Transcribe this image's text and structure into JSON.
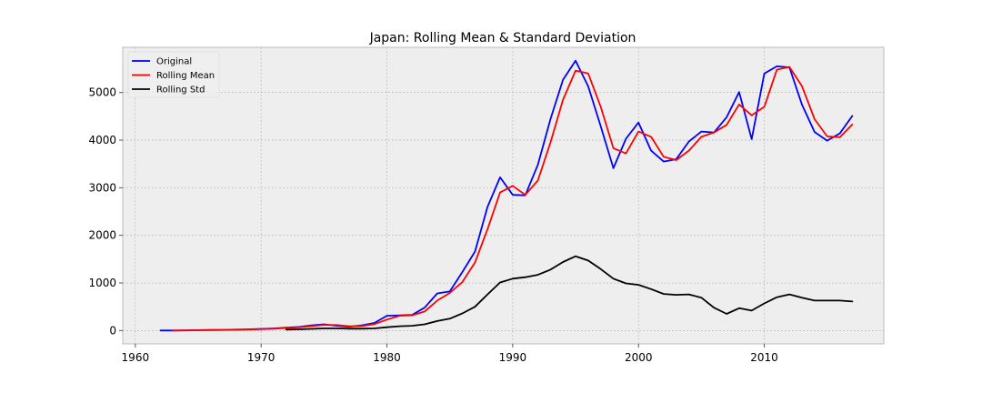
{
  "chart_data": {
    "type": "line",
    "title": "Japan: Rolling Mean & Standard Deviation",
    "xlabel": "",
    "ylabel": "",
    "xlim": [
      1959,
      2019.5
    ],
    "ylim": [
      -280,
      5950
    ],
    "xticks": [
      1960,
      1970,
      1980,
      1990,
      2000,
      2010
    ],
    "yticks": [
      0,
      1000,
      2000,
      3000,
      4000,
      5000
    ],
    "grid": true,
    "legend_position": "top-left",
    "background_color": "#eeeeee",
    "series": [
      {
        "name": "Original",
        "color": "#0000ff",
        "x": [
          1962,
          1963,
          1964,
          1965,
          1966,
          1967,
          1968,
          1969,
          1970,
          1971,
          1972,
          1973,
          1974,
          1975,
          1976,
          1977,
          1978,
          1979,
          1980,
          1981,
          1982,
          1983,
          1984,
          1985,
          1986,
          1987,
          1988,
          1989,
          1990,
          1991,
          1992,
          1993,
          1994,
          1995,
          1996,
          1997,
          1998,
          1999,
          2000,
          2001,
          2002,
          2003,
          2004,
          2005,
          2006,
          2007,
          2008,
          2009,
          2010,
          2011,
          2012,
          2013,
          2014,
          2015,
          2016,
          2017
        ],
        "y": [
          0,
          0,
          5,
          8,
          12,
          15,
          20,
          25,
          35,
          45,
          60,
          75,
          110,
          130,
          100,
          80,
          110,
          160,
          310,
          320,
          330,
          480,
          780,
          820,
          1230,
          1660,
          2600,
          3220,
          2850,
          2840,
          3480,
          4440,
          5270,
          5670,
          5130,
          4290,
          3410,
          4030,
          4370,
          3780,
          3550,
          3600,
          3970,
          4180,
          4160,
          4480,
          5010,
          4020,
          5400,
          5550,
          5530,
          4740,
          4170,
          3990,
          4140,
          4510
        ]
      },
      {
        "name": "Rolling Mean",
        "color": "#ff0000",
        "x": [
          1963,
          1964,
          1965,
          1966,
          1967,
          1968,
          1969,
          1970,
          1971,
          1972,
          1973,
          1974,
          1975,
          1976,
          1977,
          1978,
          1979,
          1980,
          1981,
          1982,
          1983,
          1984,
          1985,
          1986,
          1987,
          1988,
          1989,
          1990,
          1991,
          1992,
          1993,
          1994,
          1995,
          1996,
          1997,
          1998,
          1999,
          2000,
          2001,
          2002,
          2003,
          2004,
          2005,
          2006,
          2007,
          2008,
          2009,
          2010,
          2011,
          2012,
          2013,
          2014,
          2015,
          2016,
          2017
        ],
        "y": [
          0,
          3,
          6,
          10,
          13,
          17,
          22,
          30,
          40,
          52,
          68,
          92,
          120,
          115,
          90,
          95,
          135,
          230,
          310,
          320,
          400,
          630,
          790,
          1020,
          1430,
          2130,
          2900,
          3040,
          2850,
          3150,
          3950,
          4850,
          5460,
          5400,
          4700,
          3830,
          3720,
          4180,
          4070,
          3650,
          3580,
          3780,
          4070,
          4160,
          4320,
          4750,
          4520,
          4700,
          5480,
          5540,
          5130,
          4440,
          4080,
          4060,
          4330
        ]
      },
      {
        "name": "Rolling Std",
        "color": "#000000",
        "x": [
          1972,
          1973,
          1974,
          1975,
          1976,
          1977,
          1978,
          1979,
          1980,
          1981,
          1982,
          1983,
          1984,
          1985,
          1986,
          1987,
          1988,
          1989,
          1990,
          1991,
          1992,
          1993,
          1994,
          1995,
          1996,
          1997,
          1998,
          1999,
          2000,
          2001,
          2002,
          2003,
          2004,
          2005,
          2006,
          2007,
          2008,
          2009,
          2010,
          2011,
          2012,
          2013,
          2014,
          2015,
          2016,
          2017
        ],
        "y": [
          20,
          25,
          35,
          45,
          45,
          40,
          40,
          45,
          70,
          90,
          100,
          130,
          200,
          250,
          360,
          500,
          760,
          1010,
          1090,
          1120,
          1170,
          1280,
          1440,
          1560,
          1470,
          1290,
          1090,
          990,
          960,
          870,
          770,
          750,
          760,
          690,
          480,
          350,
          470,
          420,
          570,
          700,
          760,
          690,
          630,
          630,
          630,
          610
        ]
      }
    ]
  }
}
